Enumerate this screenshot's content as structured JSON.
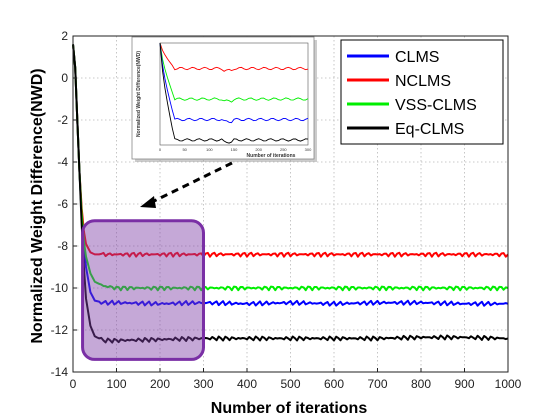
{
  "chart_data": {
    "type": "line",
    "xlabel": "Number of iterations",
    "ylabel": "Normalized Weight Difference(NWD)",
    "xlim": [
      0,
      1000
    ],
    "ylim": [
      -14,
      2
    ],
    "xticks": [
      0,
      100,
      200,
      300,
      400,
      500,
      600,
      700,
      800,
      900,
      1000
    ],
    "yticks": [
      2,
      0,
      -2,
      -4,
      -6,
      -8,
      -10,
      -12,
      -14
    ],
    "grid": true,
    "legend_position": "top-right",
    "series": [
      {
        "name": "CLMS",
        "color": "#0000ff",
        "x": [
          0,
          5,
          10,
          15,
          20,
          25,
          30,
          40,
          50,
          70,
          100,
          200,
          300,
          400,
          500,
          600,
          700,
          800,
          900,
          1000
        ],
        "y": [
          1.6,
          0.5,
          -2.0,
          -4.5,
          -6.5,
          -8.0,
          -9.0,
          -10.2,
          -10.6,
          -10.7,
          -10.7,
          -10.75,
          -10.7,
          -10.75,
          -10.7,
          -10.75,
          -10.7,
          -10.7,
          -10.75,
          -10.75
        ]
      },
      {
        "name": "NCLMS",
        "color": "#ff0000",
        "x": [
          0,
          5,
          10,
          15,
          20,
          25,
          30,
          40,
          50,
          70,
          100,
          200,
          300,
          400,
          500,
          600,
          700,
          800,
          900,
          1000
        ],
        "y": [
          1.6,
          0.5,
          -2.0,
          -4.5,
          -6.2,
          -7.3,
          -7.9,
          -8.3,
          -8.4,
          -8.4,
          -8.4,
          -8.4,
          -8.4,
          -8.4,
          -8.4,
          -8.4,
          -8.4,
          -8.4,
          -8.4,
          -8.4
        ]
      },
      {
        "name": "VSS-CLMS",
        "color": "#00ee00",
        "x": [
          0,
          5,
          10,
          15,
          20,
          25,
          30,
          40,
          50,
          70,
          100,
          200,
          300,
          400,
          500,
          600,
          700,
          800,
          900,
          1000
        ],
        "y": [
          1.6,
          0.5,
          -2.0,
          -4.5,
          -6.5,
          -7.8,
          -8.5,
          -9.3,
          -9.7,
          -9.9,
          -10.0,
          -10.0,
          -10.0,
          -10.0,
          -10.0,
          -10.0,
          -10.0,
          -10.0,
          -10.0,
          -10.0
        ]
      },
      {
        "name": "Eq-CLMS",
        "color": "#000000",
        "x": [
          0,
          5,
          10,
          15,
          20,
          25,
          30,
          40,
          50,
          70,
          100,
          200,
          300,
          400,
          500,
          600,
          700,
          800,
          900,
          1000
        ],
        "y": [
          1.6,
          0.5,
          -2.0,
          -4.5,
          -7.0,
          -9.0,
          -10.5,
          -11.8,
          -12.3,
          -12.5,
          -12.5,
          -12.45,
          -12.4,
          -12.4,
          -12.4,
          -12.4,
          -12.4,
          -12.35,
          -12.35,
          -12.4
        ]
      }
    ],
    "inset": {
      "xlabel": "Number of iterations",
      "ylabel": "Normalized Weight Difference(NWD)",
      "xticks": [
        0,
        50,
        100,
        150,
        200,
        250,
        300
      ]
    }
  }
}
